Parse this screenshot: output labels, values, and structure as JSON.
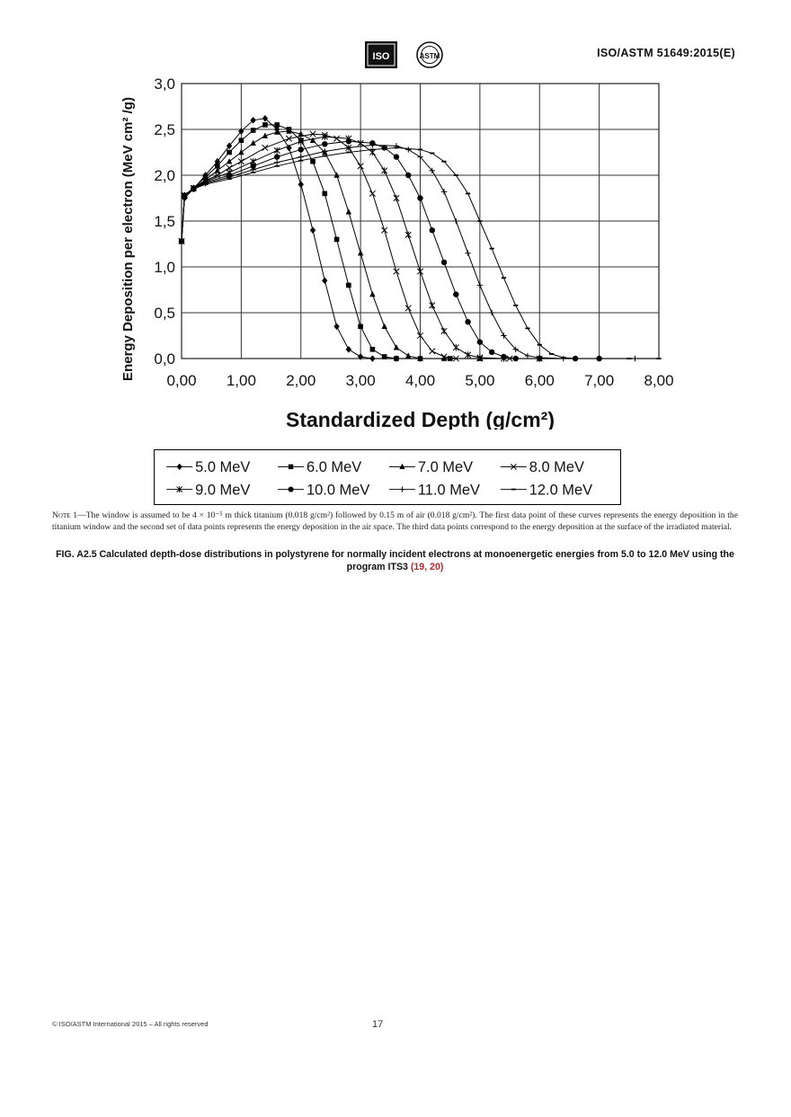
{
  "header": {
    "doc_id": "ISO/ASTM 51649:2015(E)",
    "logos": [
      {
        "name": "iso-logo",
        "text": "ISO"
      },
      {
        "name": "astm-logo",
        "text": "ASTM"
      }
    ]
  },
  "chart_data": {
    "type": "line",
    "title": "",
    "xlabel": "Standardized Depth (g/cm²)",
    "ylabel": "Energy Deposition per electron (MeV cm² /g)",
    "xlim": [
      0,
      8
    ],
    "ylim": [
      0,
      3
    ],
    "x_ticks": [
      "0,00",
      "1,00",
      "2,00",
      "3,00",
      "4,00",
      "5,00",
      "6,00",
      "7,00",
      "8,00"
    ],
    "y_ticks": [
      "0,0",
      "0,5",
      "1,0",
      "1,5",
      "2,0",
      "2,5",
      "3,0"
    ],
    "grid": true,
    "legend_position": "bottom",
    "series": [
      {
        "name": "5.0 MeV",
        "marker": "diamond",
        "x": [
          0,
          0.05,
          0.2,
          0.4,
          0.6,
          0.8,
          1.0,
          1.2,
          1.4,
          1.6,
          1.8,
          2.0,
          2.2,
          2.4,
          2.6,
          2.8,
          3.0,
          3.2,
          3.6,
          4.0
        ],
        "y": [
          1.28,
          1.75,
          1.85,
          2.0,
          2.15,
          2.32,
          2.48,
          2.6,
          2.62,
          2.5,
          2.3,
          1.9,
          1.4,
          0.85,
          0.35,
          0.1,
          0.02,
          0.0,
          0.0,
          0.0
        ]
      },
      {
        "name": "6.0 MeV",
        "marker": "square",
        "x": [
          0,
          0.05,
          0.2,
          0.4,
          0.6,
          0.8,
          1.0,
          1.2,
          1.4,
          1.6,
          1.8,
          2.0,
          2.2,
          2.4,
          2.6,
          2.8,
          3.0,
          3.2,
          3.4,
          3.6,
          4.0,
          4.5
        ],
        "y": [
          1.28,
          1.77,
          1.86,
          1.98,
          2.1,
          2.25,
          2.38,
          2.49,
          2.55,
          2.55,
          2.5,
          2.38,
          2.15,
          1.8,
          1.3,
          0.8,
          0.35,
          0.1,
          0.02,
          0.0,
          0.0,
          0.0
        ]
      },
      {
        "name": "7.0 MeV",
        "marker": "triangle",
        "x": [
          0,
          0.05,
          0.2,
          0.4,
          0.6,
          0.8,
          1.0,
          1.2,
          1.4,
          1.6,
          1.8,
          2.0,
          2.2,
          2.4,
          2.6,
          2.8,
          3.0,
          3.2,
          3.4,
          3.6,
          3.8,
          4.0,
          4.4,
          5.0
        ],
        "y": [
          1.28,
          1.78,
          1.86,
          1.95,
          2.05,
          2.15,
          2.25,
          2.35,
          2.43,
          2.47,
          2.48,
          2.45,
          2.38,
          2.25,
          2.0,
          1.6,
          1.15,
          0.7,
          0.35,
          0.12,
          0.03,
          0.0,
          0.0,
          0.0
        ]
      },
      {
        "name": "8.0 MeV",
        "marker": "x",
        "x": [
          0,
          0.05,
          0.2,
          0.4,
          0.6,
          0.8,
          1.0,
          1.4,
          1.8,
          2.2,
          2.4,
          2.6,
          2.8,
          3.0,
          3.2,
          3.4,
          3.6,
          3.8,
          4.0,
          4.2,
          4.4,
          4.6,
          5.0,
          5.5
        ],
        "y": [
          1.28,
          1.78,
          1.86,
          1.94,
          2.0,
          2.08,
          2.15,
          2.3,
          2.4,
          2.45,
          2.44,
          2.4,
          2.3,
          2.1,
          1.8,
          1.4,
          0.95,
          0.55,
          0.25,
          0.08,
          0.02,
          0.0,
          0.0,
          0.0
        ]
      },
      {
        "name": "9.0 MeV",
        "marker": "star",
        "x": [
          0,
          0.05,
          0.2,
          0.4,
          0.8,
          1.2,
          1.6,
          2.0,
          2.4,
          2.8,
          3.0,
          3.2,
          3.4,
          3.6,
          3.8,
          4.0,
          4.2,
          4.4,
          4.6,
          4.8,
          5.0,
          5.4,
          6.0
        ],
        "y": [
          1.28,
          1.78,
          1.86,
          1.93,
          2.03,
          2.15,
          2.27,
          2.37,
          2.42,
          2.4,
          2.35,
          2.25,
          2.05,
          1.75,
          1.35,
          0.95,
          0.58,
          0.3,
          0.12,
          0.04,
          0.01,
          0.0,
          0.0
        ]
      },
      {
        "name": "10.0 MeV",
        "marker": "circle",
        "x": [
          0,
          0.05,
          0.2,
          0.4,
          0.8,
          1.2,
          1.6,
          2.0,
          2.4,
          2.8,
          3.2,
          3.4,
          3.6,
          3.8,
          4.0,
          4.2,
          4.4,
          4.6,
          4.8,
          5.0,
          5.2,
          5.4,
          5.6,
          6.0,
          6.6,
          7.0
        ],
        "y": [
          1.28,
          1.78,
          1.85,
          1.92,
          2.0,
          2.1,
          2.2,
          2.28,
          2.34,
          2.37,
          2.35,
          2.3,
          2.2,
          2.0,
          1.75,
          1.4,
          1.05,
          0.7,
          0.4,
          0.18,
          0.07,
          0.02,
          0.0,
          0.0,
          0.0,
          0.0
        ]
      },
      {
        "name": "11.0 MeV",
        "marker": "plus",
        "x": [
          0,
          0.05,
          0.2,
          0.4,
          0.8,
          1.2,
          1.6,
          2.0,
          2.4,
          2.8,
          3.2,
          3.6,
          3.8,
          4.0,
          4.2,
          4.4,
          4.6,
          4.8,
          5.0,
          5.2,
          5.4,
          5.6,
          5.8,
          6.0,
          6.4,
          7.0,
          7.6
        ],
        "y": [
          1.28,
          1.78,
          1.85,
          1.91,
          1.98,
          2.06,
          2.14,
          2.2,
          2.26,
          2.3,
          2.33,
          2.32,
          2.28,
          2.2,
          2.05,
          1.82,
          1.5,
          1.15,
          0.8,
          0.5,
          0.25,
          0.1,
          0.03,
          0.01,
          0.0,
          0.0,
          0.0
        ]
      },
      {
        "name": "12.0 MeV",
        "marker": "dash",
        "x": [
          0,
          0.05,
          0.2,
          0.4,
          0.8,
          1.2,
          1.6,
          2.0,
          2.4,
          2.8,
          3.2,
          3.6,
          4.0,
          4.2,
          4.4,
          4.6,
          4.8,
          5.0,
          5.2,
          5.4,
          5.6,
          5.8,
          6.0,
          6.2,
          6.4,
          6.6,
          7.0,
          7.5,
          8.0
        ],
        "y": [
          1.28,
          1.78,
          1.85,
          1.9,
          1.96,
          2.03,
          2.1,
          2.16,
          2.21,
          2.25,
          2.28,
          2.3,
          2.28,
          2.24,
          2.15,
          2.0,
          1.8,
          1.5,
          1.2,
          0.88,
          0.58,
          0.33,
          0.15,
          0.05,
          0.01,
          0.0,
          0.0,
          0.0,
          0.0
        ]
      }
    ]
  },
  "note": {
    "label": "Note 1",
    "text": "—The window is assumed to be 4 × 10⁻⁵ m thick titanium (0.018 g/cm²) followed by 0.15 m of air (0.018 g/cm²). The first data point of these curves represents the energy deposition in the titanium window and the second set of data points represents the energy deposition in the air space. The third data points correspond to the energy deposition at the surface of the irradiated material."
  },
  "caption": {
    "text": "FIG. A2.5 Calculated depth-dose distributions in polystyrene for normally incident electrons at monoenergetic energies from 5.0 to 12.0 MeV using the program ITS3 ",
    "ref": "(19, 20)"
  },
  "footer": {
    "copyright": "© ISO/ASTM International 2015 – All rights reserved",
    "page_number": "17"
  }
}
